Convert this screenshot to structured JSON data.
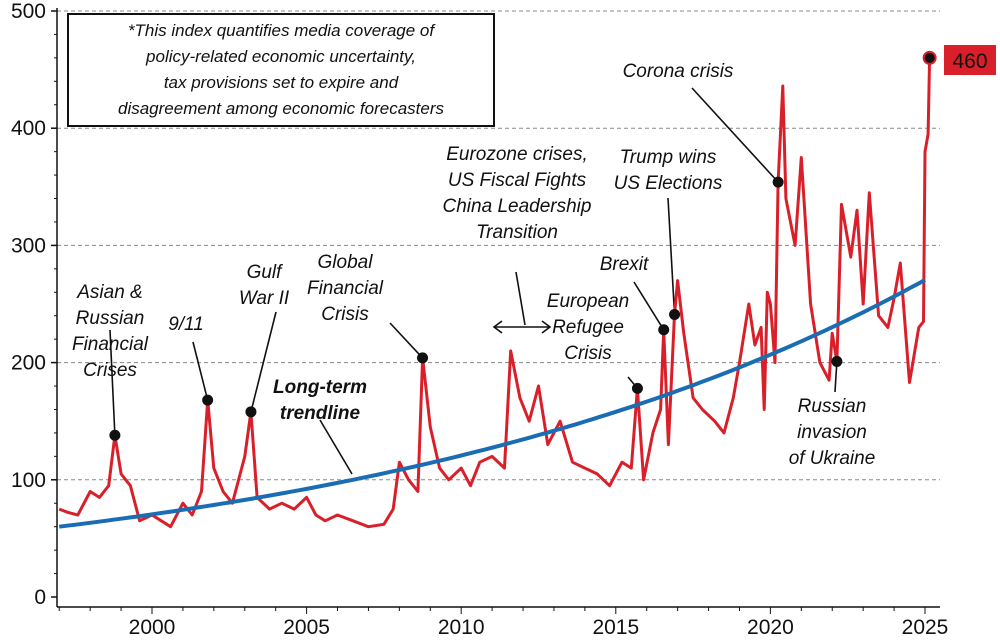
{
  "chart_data": {
    "type": "line",
    "title": "",
    "xlabel": "",
    "ylabel": "",
    "xlim": [
      1997,
      2025.5
    ],
    "ylim": [
      0,
      500
    ],
    "x_ticks": [
      "2000",
      "2005",
      "2010",
      "2015",
      "2020",
      "2025"
    ],
    "y_ticks": [
      "0",
      "100",
      "200",
      "300",
      "400",
      "500"
    ],
    "grid": "horizontal dashed",
    "colors": {
      "index": "#d9202a",
      "trend": "#1b6db3"
    },
    "series": [
      {
        "values": [
          [
            1997.0,
            75
          ],
          [
            1997.3,
            72
          ],
          [
            1997.6,
            70
          ],
          [
            1998.0,
            90
          ],
          [
            1998.3,
            85
          ],
          [
            1998.6,
            95
          ],
          [
            1998.8,
            138
          ],
          [
            1999.0,
            105
          ],
          [
            1999.3,
            95
          ],
          [
            1999.6,
            65
          ],
          [
            2000.0,
            70
          ],
          [
            2000.3,
            65
          ],
          [
            2000.6,
            60
          ],
          [
            2001.0,
            80
          ],
          [
            2001.3,
            70
          ],
          [
            2001.6,
            90
          ],
          [
            2001.8,
            168
          ],
          [
            2002.0,
            110
          ],
          [
            2002.3,
            90
          ],
          [
            2002.6,
            80
          ],
          [
            2002.8,
            100
          ],
          [
            2003.0,
            120
          ],
          [
            2003.2,
            158
          ],
          [
            2003.4,
            85
          ],
          [
            2003.8,
            75
          ],
          [
            2004.2,
            80
          ],
          [
            2004.6,
            75
          ],
          [
            2005.0,
            85
          ],
          [
            2005.3,
            70
          ],
          [
            2005.6,
            65
          ],
          [
            2006.0,
            70
          ],
          [
            2006.5,
            65
          ],
          [
            2007.0,
            60
          ],
          [
            2007.5,
            62
          ],
          [
            2007.8,
            75
          ],
          [
            2008.0,
            115
          ],
          [
            2008.3,
            100
          ],
          [
            2008.6,
            90
          ],
          [
            2008.75,
            204
          ],
          [
            2009.0,
            145
          ],
          [
            2009.3,
            110
          ],
          [
            2009.6,
            100
          ],
          [
            2010.0,
            110
          ],
          [
            2010.3,
            95
          ],
          [
            2010.6,
            115
          ],
          [
            2011.0,
            120
          ],
          [
            2011.4,
            110
          ],
          [
            2011.6,
            210
          ],
          [
            2011.9,
            170
          ],
          [
            2012.2,
            150
          ],
          [
            2012.5,
            180
          ],
          [
            2012.8,
            130
          ],
          [
            2013.2,
            150
          ],
          [
            2013.6,
            115
          ],
          [
            2014.0,
            110
          ],
          [
            2014.4,
            105
          ],
          [
            2014.8,
            95
          ],
          [
            2015.2,
            115
          ],
          [
            2015.5,
            110
          ],
          [
            2015.7,
            178
          ],
          [
            2015.9,
            100
          ],
          [
            2016.2,
            140
          ],
          [
            2016.45,
            160
          ],
          [
            2016.55,
            228
          ],
          [
            2016.7,
            130
          ],
          [
            2016.9,
            241
          ],
          [
            2017.0,
            270
          ],
          [
            2017.2,
            225
          ],
          [
            2017.5,
            170
          ],
          [
            2017.8,
            160
          ],
          [
            2018.2,
            150
          ],
          [
            2018.5,
            140
          ],
          [
            2018.8,
            170
          ],
          [
            2019.0,
            200
          ],
          [
            2019.3,
            250
          ],
          [
            2019.5,
            215
          ],
          [
            2019.7,
            230
          ],
          [
            2019.8,
            160
          ],
          [
            2019.9,
            260
          ],
          [
            2020.0,
            250
          ],
          [
            2020.15,
            200
          ],
          [
            2020.25,
            354
          ],
          [
            2020.4,
            436
          ],
          [
            2020.5,
            340
          ],
          [
            2020.8,
            300
          ],
          [
            2021.0,
            375
          ],
          [
            2021.3,
            250
          ],
          [
            2021.6,
            200
          ],
          [
            2021.9,
            185
          ],
          [
            2022.0,
            225
          ],
          [
            2022.15,
            201
          ],
          [
            2022.3,
            335
          ],
          [
            2022.6,
            290
          ],
          [
            2022.8,
            330
          ],
          [
            2023.0,
            250
          ],
          [
            2023.2,
            345
          ],
          [
            2023.5,
            240
          ],
          [
            2023.8,
            230
          ],
          [
            2024.0,
            255
          ],
          [
            2024.2,
            285
          ],
          [
            2024.5,
            183
          ],
          [
            2024.8,
            230
          ],
          [
            2024.95,
            235
          ],
          [
            2025.0,
            380
          ],
          [
            2025.1,
            395
          ],
          [
            2025.15,
            460
          ]
        ]
      },
      {
        "values": [
          [
            1997,
            60
          ],
          [
            2000,
            68
          ],
          [
            2005,
            91
          ],
          [
            2010,
            125
          ],
          [
            2015,
            158
          ],
          [
            2020,
            213
          ],
          [
            2025.1,
            272
          ]
        ]
      }
    ],
    "last_value_label": "460",
    "note": [
      "*This index quantifies media coverage of",
      "policy-related economic uncertainty,",
      "tax provisions set to expire and",
      "disagreement among economic forecasters"
    ],
    "annotations": [
      {
        "lines": [
          "Asian &",
          "Russian",
          "Financial",
          "Crises"
        ],
        "x": 1998.8,
        "y": 138
      },
      {
        "lines": [
          "9/11"
        ],
        "x": 2001.8,
        "y": 168
      },
      {
        "lines": [
          "Gulf",
          "War II"
        ],
        "x": 2003.2,
        "y": 158
      },
      {
        "lines": [
          "Global",
          "Financial",
          "Crisis"
        ],
        "x": 2008.75,
        "y": 204
      },
      {
        "lines": [
          "Long-term",
          "trendline"
        ]
      },
      {
        "lines": [
          "Eurozone crises,",
          "US Fiscal Fights",
          "China Leadership",
          "Transition"
        ]
      },
      {
        "lines": [
          "European",
          "Refugee",
          "Crisis"
        ],
        "x": 2015.7,
        "y": 178
      },
      {
        "lines": [
          "Brexit"
        ],
        "x": 2016.55,
        "y": 228
      },
      {
        "lines": [
          "Trump wins",
          "US Elections"
        ],
        "x": 2016.9,
        "y": 241
      },
      {
        "lines": [
          "Corona crisis"
        ],
        "x": 2020.25,
        "y": 354
      },
      {
        "lines": [
          "Russian",
          "invasion",
          "of Ukraine"
        ],
        "x": 2022.15,
        "y": 201
      }
    ]
  }
}
